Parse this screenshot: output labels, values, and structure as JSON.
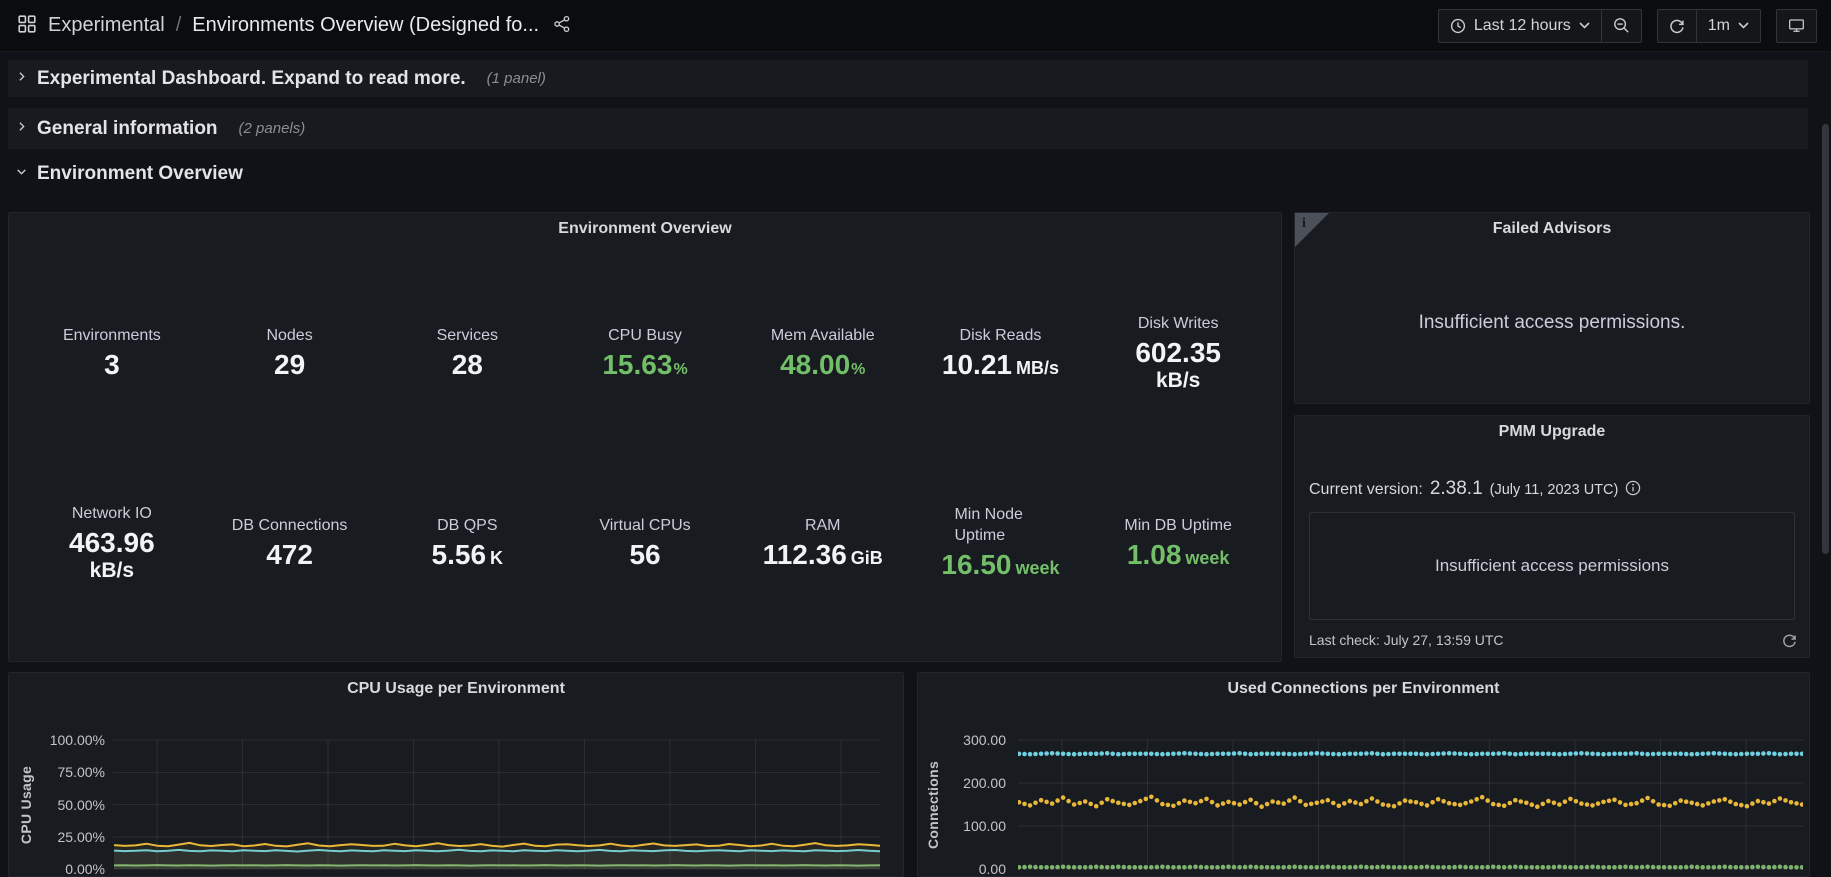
{
  "nav": {
    "breadcrumb_section": "Experimental",
    "breadcrumb_separator": "/",
    "breadcrumb_page": "Environments Overview (Designed fo...",
    "time_range_label": "Last 12 hours",
    "refresh_interval_label": "1m"
  },
  "rows": {
    "row1_title": "Experimental Dashboard. Expand to read more.",
    "row1_count": "(1 panel)",
    "row2_title": "General information",
    "row2_count": "(2 panels)",
    "row3_title": "Environment Overview"
  },
  "stats_panel": {
    "title": "Environment Overview",
    "row1": [
      {
        "label": "Environments",
        "value": "3",
        "unit": "",
        "color": "white"
      },
      {
        "label": "Nodes",
        "value": "29",
        "unit": "",
        "color": "white"
      },
      {
        "label": "Services",
        "value": "28",
        "unit": "",
        "color": "white"
      },
      {
        "label": "CPU Busy",
        "value": "15.63",
        "unit": "%",
        "color": "green"
      },
      {
        "label": "Mem Available",
        "value": "48.00",
        "unit": "%",
        "color": "green"
      },
      {
        "label": "Disk Reads",
        "value": "10.21",
        "unit": "MB/s",
        "color": "white"
      },
      {
        "label": "Disk Writes",
        "value": "602.35",
        "unit": "kB/s",
        "color": "white"
      }
    ],
    "row2": [
      {
        "label": "Network IO",
        "value": "463.96",
        "unit": "kB/s",
        "color": "white"
      },
      {
        "label": "DB Connections",
        "value": "472",
        "unit": "",
        "color": "white"
      },
      {
        "label": "DB QPS",
        "value": "5.56",
        "unit": "K",
        "color": "white"
      },
      {
        "label": "Virtual CPUs",
        "value": "56",
        "unit": "",
        "color": "white"
      },
      {
        "label": "RAM",
        "value": "112.36",
        "unit": "GiB",
        "color": "white"
      },
      {
        "label": "Min Node Uptime",
        "value": "16.50",
        "unit": "week",
        "color": "green"
      },
      {
        "label": "Min DB Uptime",
        "value": "1.08",
        "unit": "week",
        "color": "green"
      }
    ]
  },
  "failed_advisors": {
    "title": "Failed Advisors",
    "message": "Insufficient access permissions.",
    "info_corner_glyph": "i"
  },
  "pmm_upgrade": {
    "title": "PMM Upgrade",
    "version_prefix": "Current version:",
    "version": "2.38.1",
    "version_date": "(July 11, 2023 UTC)",
    "box_message": "Insufficient access permissions",
    "last_check": "Last check: July 27, 13:59 UTC"
  },
  "colors": {
    "stat_green": "#73bf69",
    "series_yellow": "#eab839",
    "series_cyan": "#6ed0e0",
    "series_green": "#7eb26d",
    "panel_bg": "#181b1f",
    "page_bg": "#111217"
  },
  "chart_data": [
    {
      "type": "line",
      "title": "CPU Usage per Environment",
      "xlabel": "",
      "ylabel": "CPU Usage",
      "ylim": [
        0,
        100
      ],
      "yticks": [
        "100.00%",
        "75.00%",
        "50.00%",
        "25.00%",
        "0.00%"
      ],
      "grid": true,
      "legend": false,
      "series": [
        {
          "color": "#7eb26d",
          "values": [
            2.8,
            2.9,
            2.7,
            2.8,
            3.0,
            2.8,
            2.7,
            2.9,
            2.8,
            2.6,
            2.8,
            2.9,
            2.8,
            2.9,
            2.7,
            2.8,
            3.0,
            2.8,
            2.7,
            2.9,
            2.8,
            2.6,
            2.8,
            2.9,
            2.8,
            2.9,
            2.7,
            2.8,
            3.0,
            2.8,
            2.7,
            2.9,
            2.8,
            2.6,
            2.8,
            2.9,
            2.8,
            2.9,
            2.7,
            2.8,
            3.0,
            2.8,
            2.7,
            2.9,
            2.8,
            2.6,
            2.8,
            2.9,
            2.8,
            2.9,
            2.7,
            2.8,
            3.0,
            2.8,
            2.7,
            2.9,
            2.8,
            2.6,
            2.8,
            2.9,
            2.8,
            2.9,
            2.7,
            2.8,
            3.0,
            2.8,
            2.7,
            2.9,
            2.8,
            2.6,
            2.8,
            2.9
          ]
        },
        {
          "color": "#6ed0e0",
          "values": [
            14.3,
            13.9,
            14.1,
            14.6,
            13.8,
            14.2,
            14.8,
            14.0,
            13.7,
            14.4,
            14.1,
            13.8,
            14.5,
            14.2,
            13.9,
            14.6,
            14.0,
            13.6,
            14.3,
            14.7,
            14.1,
            13.8,
            14.4,
            14.0,
            13.7,
            14.5,
            14.2,
            13.9,
            14.6,
            14.1,
            13.8,
            14.3,
            14.9,
            14.0,
            13.7,
            14.4,
            14.2,
            13.8,
            14.5,
            14.1,
            13.9,
            14.6,
            14.2,
            13.7,
            14.3,
            14.8,
            14.0,
            13.8,
            14.5,
            14.1,
            13.9,
            14.4,
            14.7,
            14.0,
            13.7,
            14.3,
            14.6,
            14.1,
            13.8,
            14.5,
            14.2,
            13.9,
            14.4,
            14.0,
            13.8,
            14.6,
            14.3,
            13.9,
            14.2,
            14.7,
            14.1,
            13.8
          ]
        },
        {
          "color": "#eab839",
          "values": [
            18.5,
            17.9,
            18.3,
            19.6,
            18.1,
            17.6,
            18.9,
            20.2,
            18.4,
            17.8,
            18.6,
            19.1,
            17.7,
            18.2,
            19.4,
            18.0,
            17.5,
            18.8,
            19.9,
            18.2,
            17.7,
            18.5,
            19.2,
            18.6,
            17.9,
            18.1,
            19.5,
            18.3,
            17.6,
            18.7,
            20.0,
            18.5,
            17.8,
            18.2,
            19.3,
            18.0,
            17.4,
            18.6,
            19.7,
            18.1,
            17.7,
            18.9,
            19.2,
            18.4,
            17.8,
            18.3,
            19.6,
            18.2,
            17.5,
            18.7,
            19.8,
            18.3,
            17.9,
            18.5,
            19.1,
            17.8,
            18.0,
            19.4,
            18.6,
            17.7,
            18.2,
            19.5,
            18.1,
            17.6,
            18.8,
            20.1,
            18.4,
            17.9,
            18.3,
            19.2,
            18.7,
            18.0
          ]
        }
      ]
    },
    {
      "type": "scatter",
      "title": "Used Connections per Environment",
      "xlabel": "",
      "ylabel": "Connections",
      "ylim": [
        0,
        300
      ],
      "yticks": [
        "300.00",
        "200.00",
        "100.00",
        "0.00"
      ],
      "grid": true,
      "legend": false,
      "series": [
        {
          "color": "#6ed0e0",
          "values": [
            268,
            267,
            268,
            269,
            268,
            267,
            268,
            268,
            269,
            267,
            268,
            268,
            268,
            267,
            268,
            269,
            268,
            267,
            268,
            268,
            269,
            267,
            268,
            268,
            268,
            267,
            268,
            269,
            268,
            267,
            268,
            268,
            269,
            267,
            268,
            268,
            268,
            267,
            268,
            269,
            268,
            267,
            268,
            268,
            269,
            267,
            268,
            268,
            268,
            267,
            268,
            269,
            268,
            267,
            268,
            268,
            269,
            267,
            268,
            268,
            268,
            267,
            268,
            269,
            268,
            267,
            268,
            268,
            269,
            267,
            268,
            268
          ]
        },
        {
          "color": "#eab839",
          "values": [
            155,
            148,
            160,
            152,
            166,
            150,
            157,
            146,
            162,
            154,
            149,
            158,
            168,
            151,
            147,
            159,
            153,
            163,
            148,
            156,
            150,
            161,
            145,
            157,
            152,
            166,
            149,
            154,
            160,
            147,
            158,
            151,
            164,
            150,
            146,
            159,
            155,
            148,
            162,
            153,
            149,
            157,
            167,
            151,
            147,
            160,
            154,
            145,
            158,
            150,
            163,
            152,
            148,
            156,
            161,
            149,
            153,
            165,
            150,
            147,
            159,
            154,
            148,
            157,
            162,
            151,
            146,
            158,
            152,
            164,
            155,
            150
          ]
        },
        {
          "color": "#7eb26d",
          "values": [
            4,
            5,
            4,
            4,
            5,
            4,
            4,
            5,
            4,
            5,
            4,
            4,
            4,
            5,
            4,
            4,
            5,
            4,
            4,
            5,
            4,
            5,
            4,
            4,
            4,
            5,
            4,
            4,
            5,
            4,
            4,
            5,
            4,
            5,
            4,
            4,
            4,
            5,
            4,
            4,
            5,
            4,
            4,
            5,
            4,
            5,
            4,
            4,
            4,
            5,
            4,
            4,
            5,
            4,
            4,
            5,
            4,
            5,
            4,
            4,
            4,
            5,
            4,
            4,
            5,
            4,
            4,
            5,
            4,
            5,
            4,
            4
          ]
        }
      ]
    }
  ]
}
